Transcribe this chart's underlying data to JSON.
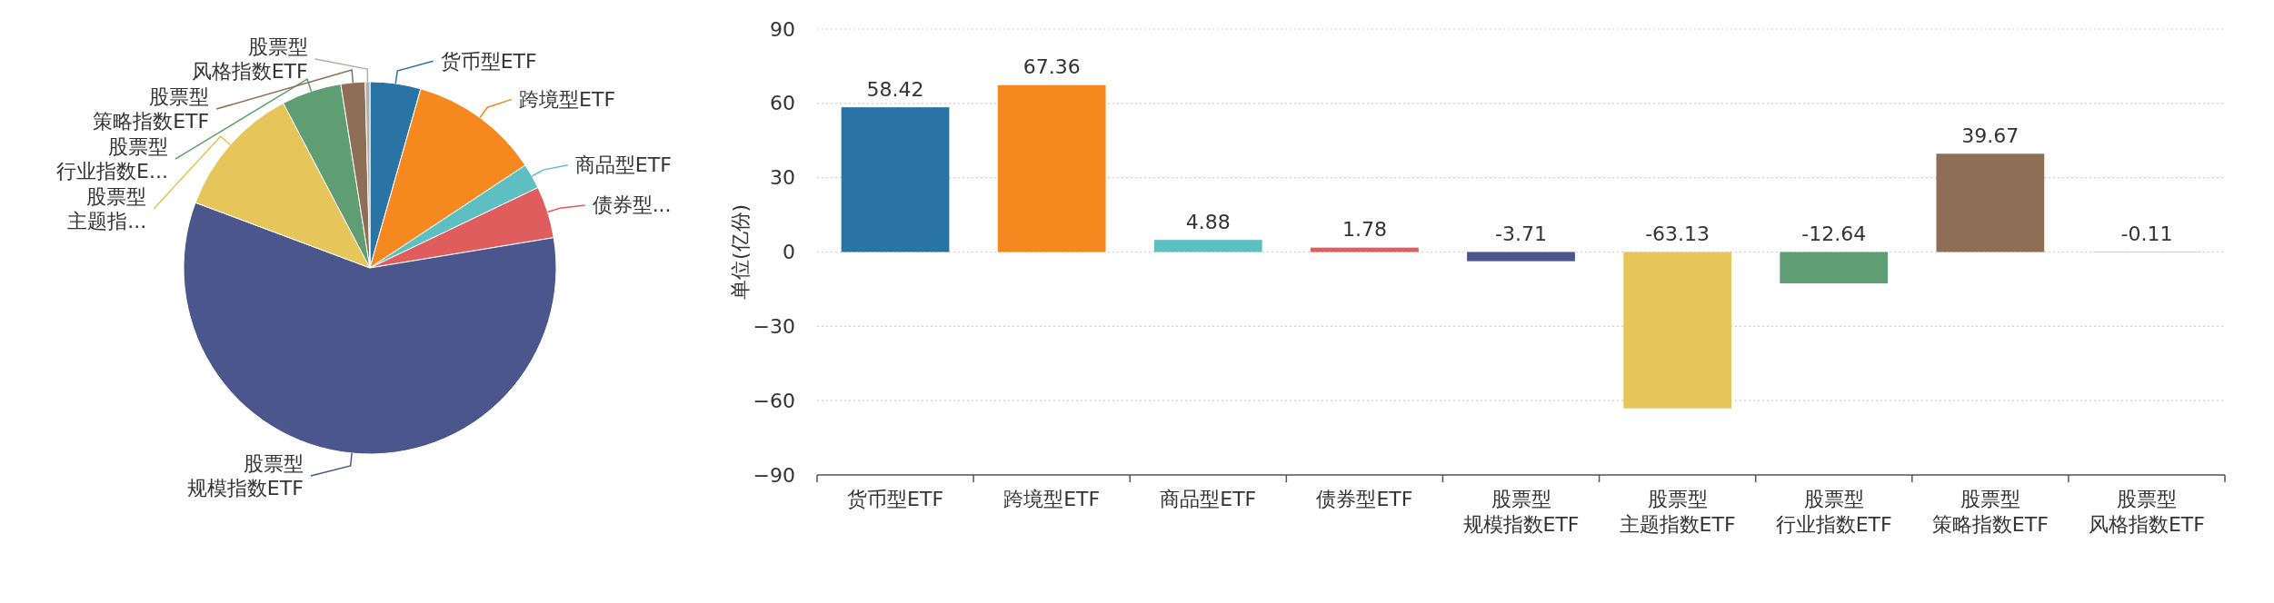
{
  "chart_data": [
    {
      "type": "pie",
      "categories": [
        "货币型ETF",
        "跨境型ETF",
        "商品型ETF",
        "债券型...",
        "股票型规模指数ETF",
        "股票型主题指...",
        "股票型行业指数E...",
        "股票型策略指数ETF",
        "股票型风格指数ETF"
      ],
      "values": [
        4.4,
        11.3,
        2.2,
        4.5,
        58.3,
        11.6,
        5.2,
        2.1,
        0.4
      ],
      "colors": [
        "#2a74a5",
        "#f5891f",
        "#5dbfc1",
        "#e05d5d",
        "#4a568c",
        "#e6c65a",
        "#5e9e72",
        "#8e6e55",
        "#b0b0b0"
      ]
    },
    {
      "type": "bar",
      "ylabel": "单位(亿份)",
      "categories": [
        "货币型ETF",
        "跨境型ETF",
        "商品型ETF",
        "债券型ETF",
        "股票型规模指数ETF",
        "股票型主题指数ETF",
        "股票型行业指数ETF",
        "股票型策略指数ETF",
        "股票型风格指数ETF"
      ],
      "values": [
        58.42,
        67.36,
        4.88,
        1.78,
        -3.71,
        -63.13,
        -12.64,
        39.67,
        -0.11
      ],
      "colors": [
        "#2a74a5",
        "#f5891f",
        "#5dbfc1",
        "#e05d5d",
        "#4a568c",
        "#e6c65a",
        "#5e9e72",
        "#8e6e55",
        "#b0b0b0"
      ],
      "ylim": [
        -90,
        90
      ],
      "yticks": [
        -90,
        -60,
        -30,
        0,
        30,
        60,
        90
      ],
      "grid": "y",
      "data_labels": true
    }
  ]
}
